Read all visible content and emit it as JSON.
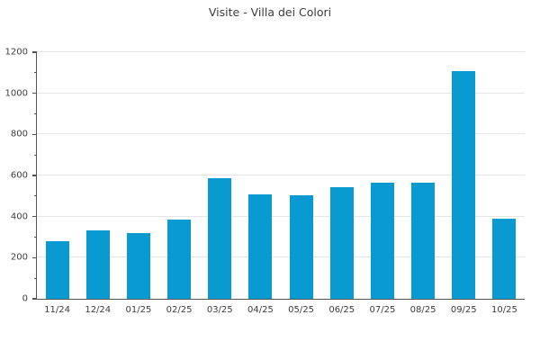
{
  "title": "Visite - Villa dei Colori",
  "colors": {
    "bar": "#0a9ad2",
    "axis": "#555555",
    "grid": "#e5e5e5",
    "text": "#3c3c3c"
  },
  "chart_data": {
    "type": "bar",
    "title": "Visite - Villa dei Colori",
    "categories": [
      "11/24",
      "12/24",
      "01/25",
      "02/25",
      "03/25",
      "04/25",
      "05/25",
      "06/25",
      "07/25",
      "08/25",
      "09/25",
      "10/25"
    ],
    "values": [
      280,
      335,
      320,
      385,
      585,
      510,
      505,
      545,
      565,
      565,
      1110,
      390
    ],
    "xlabel": "",
    "ylabel": "",
    "ylim": [
      0,
      1200
    ],
    "yticks": [
      0,
      200,
      400,
      600,
      800,
      1000,
      1200
    ],
    "ytick_minor_interval": 100,
    "grid": true,
    "legend": false
  }
}
